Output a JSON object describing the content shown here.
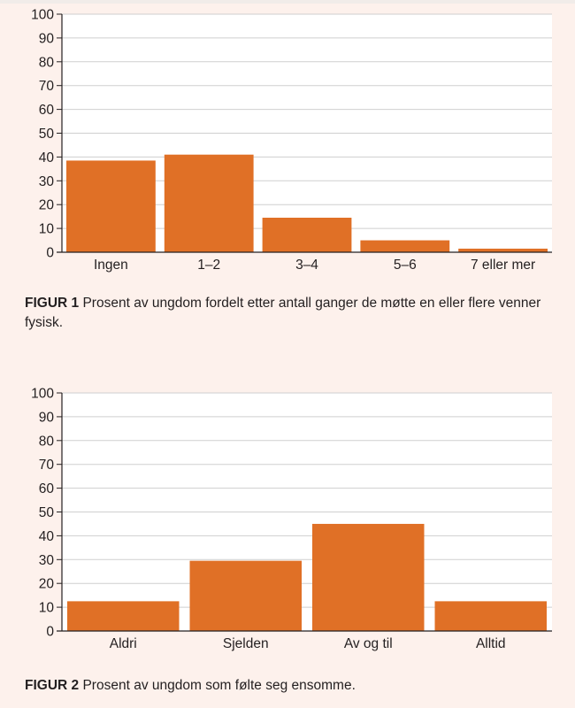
{
  "colors": {
    "bar": "#e07026",
    "axis": "#231f20",
    "grid": "#cfcfcf",
    "plot_bg": "#ffffff",
    "page_bg": "#fdf1ec"
  },
  "figure1": {
    "caption_label": "FIGUR 1",
    "caption_text": "Prosent av ungdom fordelt etter antall ganger de møtte en eller flere venner fysisk."
  },
  "figure2": {
    "caption_label": "FIGUR 2",
    "caption_text": "Prosent av ungdom som følte seg ensomme."
  },
  "chart_data": [
    {
      "type": "bar",
      "categories": [
        "Ingen",
        "1–2",
        "3–4",
        "5–6",
        "7 eller mer"
      ],
      "values": [
        38.5,
        41,
        14.5,
        5,
        1.5
      ],
      "title": "",
      "xlabel": "",
      "ylabel": "",
      "ylim": [
        0,
        100
      ],
      "yticks": [
        0,
        10,
        20,
        30,
        40,
        50,
        60,
        70,
        80,
        90,
        100
      ],
      "grid": true
    },
    {
      "type": "bar",
      "categories": [
        "Aldri",
        "Sjelden",
        "Av og til",
        "Alltid"
      ],
      "values": [
        12.5,
        29.5,
        45,
        12.5
      ],
      "title": "",
      "xlabel": "",
      "ylabel": "",
      "ylim": [
        0,
        100
      ],
      "yticks": [
        0,
        10,
        20,
        30,
        40,
        50,
        60,
        70,
        80,
        90,
        100
      ],
      "grid": true
    }
  ]
}
